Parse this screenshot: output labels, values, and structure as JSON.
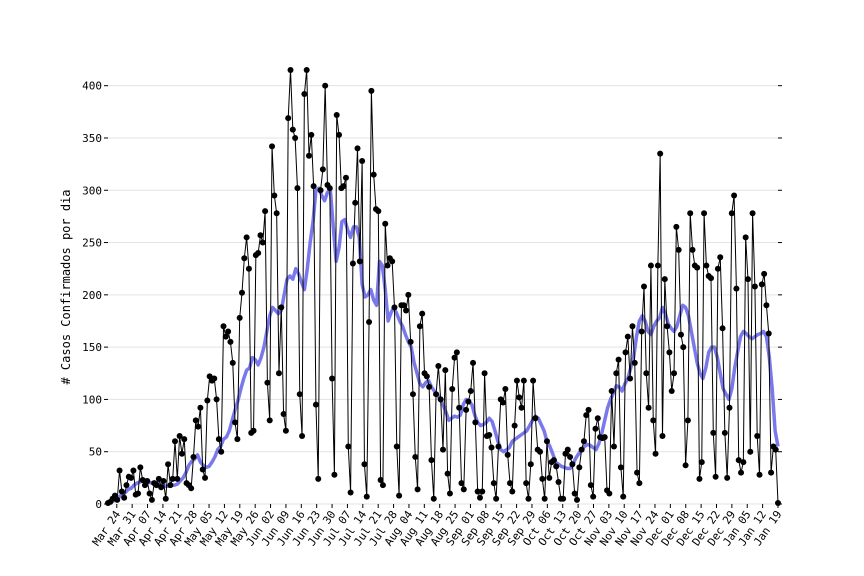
{
  "chart_data": {
    "type": "line",
    "title": "",
    "xlabel": "",
    "ylabel": "# Casos Confirmados por dia",
    "ylim": [
      0,
      415
    ],
    "yticks": [
      0,
      50,
      100,
      150,
      200,
      250,
      300,
      350,
      400
    ],
    "grid": true,
    "x_start": "2020-03-20",
    "x_end": "2021-01-19",
    "xtick_labels": [
      "Mar 24",
      "Mar 31",
      "Apr 07",
      "Apr 14",
      "Apr 21",
      "Apr 28",
      "May 05",
      "May 12",
      "May 19",
      "May 26",
      "Jun 02",
      "Jun 09",
      "Jun 16",
      "Jun 23",
      "Jun 30",
      "Jul 07",
      "Jul 14",
      "Jul 21",
      "Jul 28",
      "Aug 04",
      "Aug 11",
      "Aug 18",
      "Aug 25",
      "Sep 01",
      "Sep 08",
      "Sep 15",
      "Sep 22",
      "Sep 29",
      "Oct 06",
      "Oct 13",
      "Oct 20",
      "Oct 27",
      "Nov 03",
      "Nov 10",
      "Nov 17",
      "Nov 24",
      "Dec 01",
      "Dec 08",
      "Dec 15",
      "Dec 22",
      "Dec 29",
      "Jan 05",
      "Jan 12",
      "Jan 19"
    ],
    "series": [
      {
        "kind": "daily",
        "color": "#000000",
        "values": [
          1,
          2,
          5,
          8,
          4,
          32,
          12,
          6,
          18,
          26,
          25,
          32,
          9,
          10,
          35,
          23,
          18,
          22,
          10,
          4,
          20,
          18,
          24,
          16,
          22,
          5,
          38,
          18,
          24,
          60,
          24,
          65,
          48,
          62,
          20,
          18,
          15,
          45,
          80,
          74,
          92,
          33,
          25,
          99,
          122,
          118,
          120,
          100,
          62,
          50,
          170,
          160,
          165,
          155,
          135,
          78,
          62,
          178,
          202,
          235,
          255,
          225,
          68,
          70,
          238,
          240,
          257,
          250,
          280,
          116,
          80,
          342,
          295,
          278,
          125,
          188,
          86,
          70,
          369,
          415,
          358,
          350,
          302,
          105,
          65,
          392,
          415,
          333,
          353,
          304,
          95,
          24,
          300,
          320,
          400,
          305,
          302,
          120,
          28,
          372,
          353,
          302,
          304,
          312,
          55,
          11,
          230,
          288,
          340,
          232,
          328,
          38,
          7,
          174,
          395,
          315,
          282,
          280,
          23,
          18,
          268,
          228,
          235,
          232,
          188,
          55,
          8,
          190,
          190,
          185,
          200,
          155,
          105,
          45,
          14,
          170,
          182,
          125,
          122,
          112,
          42,
          5,
          105,
          132,
          100,
          52,
          128,
          29,
          10,
          110,
          140,
          145,
          92,
          20,
          14,
          90,
          98,
          108,
          135,
          78,
          12,
          6,
          12,
          125,
          65,
          66,
          54,
          20,
          5,
          55,
          100,
          97,
          110,
          47,
          20,
          12,
          75,
          118,
          102,
          92,
          118,
          20,
          5,
          38,
          118,
          82,
          52,
          50,
          24,
          5,
          60,
          25,
          40,
          42,
          36,
          21,
          5,
          5,
          48,
          52,
          45,
          38,
          10,
          4,
          35,
          52,
          60,
          85,
          90,
          18,
          7,
          72,
          82,
          64,
          63,
          64,
          13,
          10,
          108,
          55,
          125,
          138,
          35,
          7,
          145,
          160,
          120,
          170,
          135,
          30,
          20,
          165,
          208,
          125,
          92,
          228,
          80,
          48,
          228,
          335,
          65,
          215,
          170,
          145,
          108,
          125,
          265,
          243,
          162,
          150,
          37,
          80,
          278,
          243,
          228,
          226,
          24,
          40,
          278,
          228,
          218,
          216,
          68,
          26,
          225,
          236,
          168,
          68,
          25,
          92,
          278,
          295,
          206,
          42,
          30,
          40,
          255,
          215,
          50,
          278,
          208,
          65,
          28,
          210,
          220,
          190,
          163,
          30,
          55,
          52,
          1
        ]
      },
      {
        "kind": "moving average",
        "color": "#6a6aea",
        "values": [
          1,
          2,
          3,
          5,
          7,
          10,
          11,
          14,
          15,
          18,
          20,
          21,
          22,
          23,
          21,
          20,
          21,
          20,
          19,
          18,
          17,
          17,
          18,
          18,
          19,
          22,
          25,
          30,
          37,
          41,
          43,
          47,
          40,
          37,
          35,
          36,
          40,
          45,
          52,
          55,
          62,
          64,
          70,
          80,
          90,
          99,
          110,
          120,
          128,
          130,
          140,
          138,
          133,
          140,
          150,
          165,
          180,
          188,
          185,
          182,
          185,
          200,
          215,
          218,
          215,
          225,
          220,
          212,
          205,
          225,
          250,
          270,
          300,
          302,
          295,
          290,
          298,
          300,
          265,
          232,
          245,
          270,
          272,
          262,
          255,
          265,
          265,
          255,
          210,
          198,
          200,
          205,
          195,
          190,
          232,
          228,
          205,
          175,
          183,
          188,
          182,
          175,
          170,
          162,
          155,
          150,
          135,
          125,
          115,
          112,
          116,
          118,
          112,
          108,
          105,
          100,
          95,
          88,
          80,
          82,
          84,
          83,
          85,
          95,
          100,
          98,
          95,
          85,
          78,
          75,
          76,
          78,
          82,
          79,
          70,
          60,
          52,
          50,
          52,
          54,
          60,
          62,
          64,
          66,
          68,
          70,
          75,
          80,
          84,
          82,
          76,
          70,
          60,
          55,
          48,
          40,
          38,
          36,
          35,
          34,
          34,
          38,
          44,
          48,
          52,
          55,
          57,
          56,
          54,
          52,
          58,
          68,
          80,
          92,
          100,
          106,
          113,
          112,
          108,
          115,
          120,
          130,
          140,
          160,
          175,
          180,
          175,
          165,
          162,
          170,
          175,
          178,
          188,
          182,
          172,
          168,
          165,
          170,
          180,
          190,
          188,
          180,
          165,
          150,
          135,
          125,
          120,
          130,
          145,
          150,
          150,
          140,
          125,
          110,
          105,
          100,
          110,
          130,
          145,
          160,
          165,
          163,
          160,
          158,
          160,
          162,
          163,
          165,
          160,
          140,
          110,
          70,
          55
        ]
      }
    ]
  }
}
